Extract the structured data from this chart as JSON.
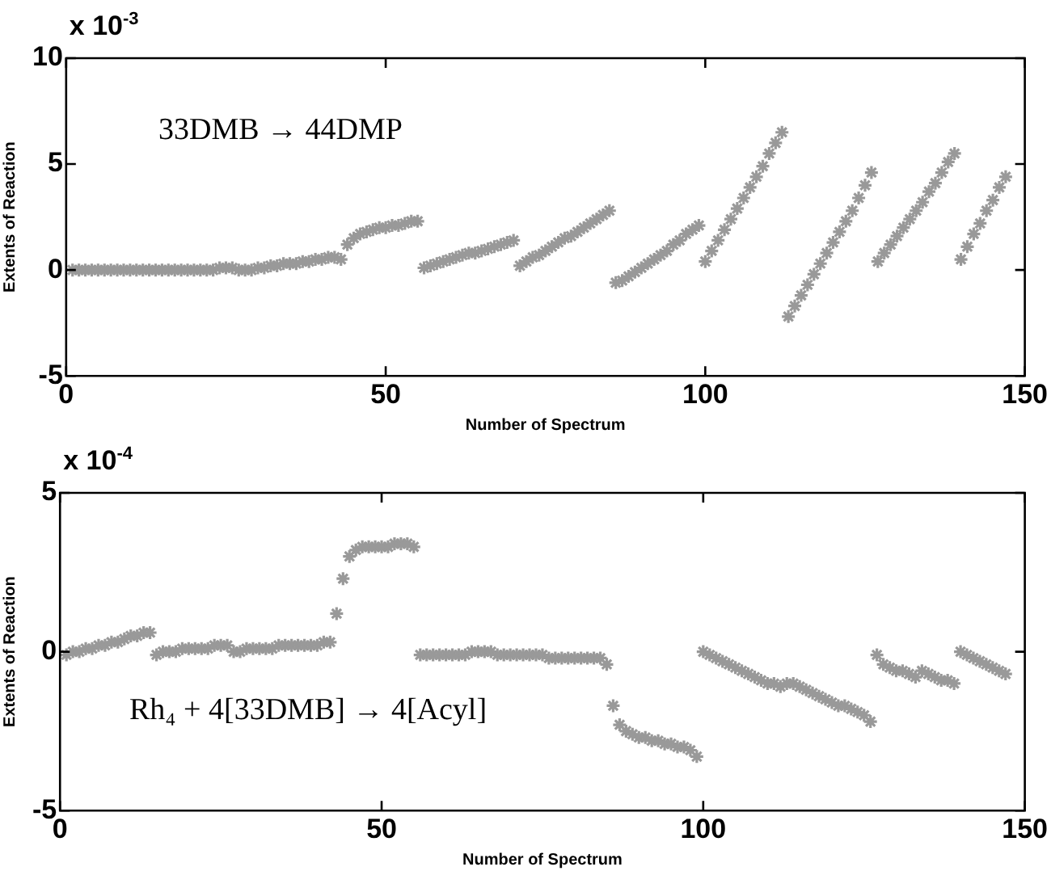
{
  "chart_data": [
    {
      "type": "scatter",
      "xlabel": "Number of Spectrum",
      "ylabel": "Extents of Reaction",
      "annotations": [
        "x 10$^{-3}$",
        "33DMB → 44DMP"
      ],
      "xlim": [
        0,
        150
      ],
      "xticks": [
        0,
        50,
        100,
        150
      ],
      "ylim": [
        -5,
        10
      ],
      "yticks": [
        -5,
        0,
        5,
        10
      ],
      "marker": "cross",
      "grid": false,
      "legend": false,
      "series": [
        {
          "color": "#999999",
          "x": [
            1,
            2,
            3,
            4,
            5,
            6,
            7,
            8,
            9,
            10,
            11,
            12,
            13,
            14,
            15,
            16,
            17,
            18,
            19,
            20,
            21,
            22,
            23,
            24,
            25,
            26,
            27,
            28,
            29,
            30,
            31,
            32,
            33,
            34,
            35,
            36,
            37,
            38,
            39,
            40,
            41,
            42,
            43,
            44,
            45,
            46,
            47,
            48,
            49,
            50,
            51,
            52,
            53,
            54,
            55,
            56,
            57,
            58,
            59,
            60,
            61,
            62,
            63,
            64,
            65,
            66,
            67,
            68,
            69,
            70,
            71,
            72,
            73,
            74,
            75,
            76,
            77,
            78,
            79,
            80,
            81,
            82,
            83,
            84,
            85,
            86,
            87,
            88,
            89,
            90,
            91,
            92,
            93,
            94,
            95,
            96,
            97,
            98,
            99,
            100,
            101,
            102,
            103,
            104,
            105,
            106,
            107,
            108,
            109,
            110,
            111,
            112,
            113,
            114,
            115,
            116,
            117,
            118,
            119,
            120,
            121,
            122,
            123,
            124,
            125,
            126,
            127,
            128,
            129,
            130,
            131,
            132,
            133,
            134,
            135,
            136,
            137,
            138,
            139,
            140,
            141,
            142,
            143,
            144,
            145,
            146,
            147
          ],
          "values": [
            0.0,
            0.0,
            0.0,
            0.0,
            0.0,
            0.0,
            0.0,
            0.0,
            0.0,
            0.0,
            0.0,
            0.0,
            0.0,
            0.0,
            0.0,
            0.0,
            0.0,
            0.0,
            0.0,
            0.0,
            0.0,
            0.0,
            0.0,
            0.1,
            0.1,
            0.1,
            0.0,
            0.0,
            0.0,
            0.1,
            0.1,
            0.2,
            0.2,
            0.3,
            0.3,
            0.3,
            0.4,
            0.4,
            0.5,
            0.5,
            0.6,
            0.6,
            0.5,
            1.2,
            1.5,
            1.7,
            1.8,
            1.9,
            2.0,
            2.0,
            2.1,
            2.1,
            2.2,
            2.3,
            2.3,
            0.1,
            0.2,
            0.3,
            0.4,
            0.5,
            0.6,
            0.7,
            0.8,
            0.8,
            0.9,
            1.0,
            1.1,
            1.2,
            1.3,
            1.4,
            0.2,
            0.4,
            0.6,
            0.7,
            0.9,
            1.1,
            1.3,
            1.5,
            1.6,
            1.8,
            2.0,
            2.2,
            2.4,
            2.6,
            2.8,
            -0.6,
            -0.5,
            -0.3,
            -0.1,
            0.1,
            0.3,
            0.5,
            0.7,
            0.9,
            1.2,
            1.4,
            1.7,
            1.9,
            2.1,
            0.4,
            0.9,
            1.4,
            1.9,
            2.4,
            2.9,
            3.4,
            3.9,
            4.4,
            4.9,
            5.5,
            6.0,
            6.5,
            -2.2,
            -1.7,
            -1.2,
            -0.7,
            -0.2,
            0.3,
            0.8,
            1.3,
            1.8,
            2.3,
            2.8,
            3.4,
            4.0,
            4.6,
            0.4,
            0.8,
            1.2,
            1.6,
            2.0,
            2.4,
            2.8,
            3.2,
            3.7,
            4.1,
            4.6,
            5.1,
            5.5,
            0.5,
            1.1,
            1.7,
            2.2,
            2.8,
            3.3,
            3.9,
            4.4
          ]
        }
      ]
    },
    {
      "type": "scatter",
      "xlabel": "Number of Spectrum",
      "ylabel": "Extents of Reaction",
      "annotations": [
        "x 10$^{-4}$",
        "Rh₄ + 4[33DMB] → 4[Acyl]"
      ],
      "xlim": [
        0,
        150
      ],
      "xticks": [
        0,
        50,
        100,
        150
      ],
      "ylim": [
        -5,
        5
      ],
      "yticks": [
        -5,
        0,
        5
      ],
      "marker": "cross",
      "grid": false,
      "legend": false,
      "series": [
        {
          "color": "#999999",
          "x": [
            1,
            2,
            3,
            4,
            5,
            6,
            7,
            8,
            9,
            10,
            11,
            12,
            13,
            14,
            15,
            16,
            17,
            18,
            19,
            20,
            21,
            22,
            23,
            24,
            25,
            26,
            27,
            28,
            29,
            30,
            31,
            32,
            33,
            34,
            35,
            36,
            37,
            38,
            39,
            40,
            41,
            42,
            43,
            44,
            45,
            46,
            47,
            48,
            49,
            50,
            51,
            52,
            53,
            54,
            55,
            56,
            57,
            58,
            59,
            60,
            61,
            62,
            63,
            64,
            65,
            66,
            67,
            68,
            69,
            70,
            71,
            72,
            73,
            74,
            75,
            76,
            77,
            78,
            79,
            80,
            81,
            82,
            83,
            84,
            85,
            86,
            87,
            88,
            89,
            90,
            91,
            92,
            93,
            94,
            95,
            96,
            97,
            98,
            99,
            100,
            101,
            102,
            103,
            104,
            105,
            106,
            107,
            108,
            109,
            110,
            111,
            112,
            113,
            114,
            115,
            116,
            117,
            118,
            119,
            120,
            121,
            122,
            123,
            124,
            125,
            126,
            127,
            128,
            129,
            130,
            131,
            132,
            133,
            134,
            135,
            136,
            137,
            138,
            139,
            140,
            141,
            142,
            143,
            144,
            145,
            146,
            147
          ],
          "values": [
            -0.1,
            0.0,
            0.0,
            0.1,
            0.1,
            0.2,
            0.2,
            0.3,
            0.3,
            0.4,
            0.5,
            0.5,
            0.6,
            0.6,
            -0.1,
            0.0,
            0.0,
            0.0,
            0.1,
            0.1,
            0.1,
            0.1,
            0.1,
            0.2,
            0.2,
            0.2,
            0.0,
            0.0,
            0.1,
            0.1,
            0.1,
            0.1,
            0.1,
            0.2,
            0.2,
            0.2,
            0.2,
            0.2,
            0.2,
            0.2,
            0.3,
            0.3,
            1.2,
            2.3,
            3.0,
            3.2,
            3.3,
            3.3,
            3.3,
            3.3,
            3.3,
            3.4,
            3.4,
            3.4,
            3.3,
            -0.1,
            -0.1,
            -0.1,
            -0.1,
            -0.1,
            -0.1,
            -0.1,
            -0.1,
            0.0,
            0.0,
            0.0,
            0.0,
            -0.1,
            -0.1,
            -0.1,
            -0.1,
            -0.1,
            -0.1,
            -0.1,
            -0.1,
            -0.2,
            -0.2,
            -0.2,
            -0.2,
            -0.2,
            -0.2,
            -0.2,
            -0.2,
            -0.2,
            -0.4,
            -1.7,
            -2.3,
            -2.5,
            -2.6,
            -2.7,
            -2.7,
            -2.8,
            -2.8,
            -2.9,
            -2.9,
            -3.0,
            -3.0,
            -3.1,
            -3.3,
            0.0,
            -0.1,
            -0.2,
            -0.3,
            -0.4,
            -0.5,
            -0.6,
            -0.7,
            -0.8,
            -0.9,
            -1.0,
            -1.0,
            -1.1,
            -1.0,
            -1.0,
            -1.1,
            -1.2,
            -1.3,
            -1.4,
            -1.5,
            -1.6,
            -1.7,
            -1.7,
            -1.8,
            -1.9,
            -2.0,
            -2.2,
            -0.1,
            -0.4,
            -0.5,
            -0.6,
            -0.6,
            -0.7,
            -0.8,
            -0.6,
            -0.7,
            -0.8,
            -0.9,
            -0.9,
            -1.0,
            0.0,
            -0.1,
            -0.2,
            -0.3,
            -0.4,
            -0.5,
            -0.6,
            -0.7
          ]
        }
      ]
    }
  ]
}
